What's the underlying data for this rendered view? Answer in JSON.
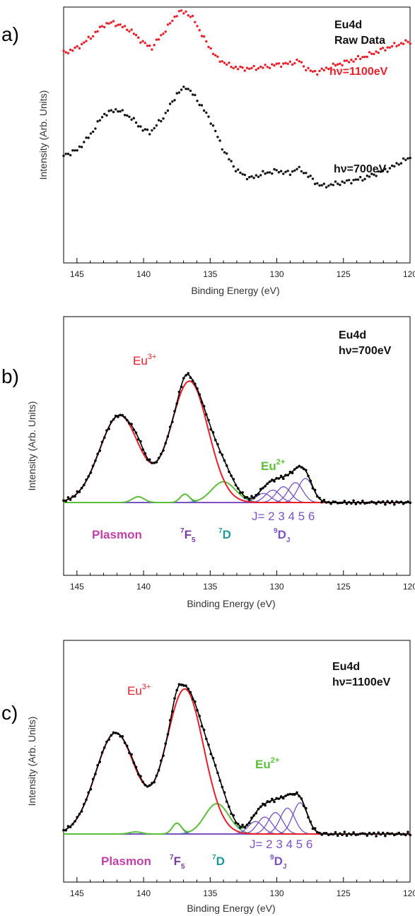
{
  "figure": {
    "colors": {
      "raw_high": "#e8202a",
      "raw_low": "#111111",
      "eu3": "#e8202a",
      "eu2": "#5cbf3a",
      "plasmon": "#c23fa6",
      "f5": "#7a3aa0",
      "d7": "#1e9a9a",
      "dj": "#7a52c4",
      "envelope": "#000000",
      "baseline": "#c23fa6"
    }
  },
  "panels": [
    {
      "id": "a",
      "letter": "a)",
      "label_line1": "Eu4d",
      "label_line2": "Raw Data",
      "series_labels": [
        "hν=1100eV",
        "hν=700eV"
      ]
    },
    {
      "id": "b",
      "letter": "b)",
      "label_line1": "Eu4d",
      "label_line2": "hν=700eV",
      "eu3_label": "Eu",
      "eu3_sup": "3+",
      "eu2_label": "Eu",
      "eu2_sup": "2+",
      "j_label": "J= 2 3 4 5 6",
      "plasmon_label": "Plasmon",
      "f5_label_main": "F",
      "f5_label_sup": "7",
      "f5_label_sub": "5",
      "d7_label_main": "D",
      "d7_label_sup": "7",
      "dj_label_main": "D",
      "dj_label_sup": "9",
      "dj_label_sub": "J"
    },
    {
      "id": "c",
      "letter": "c)",
      "label_line1": "Eu4d",
      "label_line2": "hν=1100eV",
      "eu3_label": "Eu",
      "eu3_sup": "3+",
      "eu2_label": "Eu",
      "eu2_sup": "2+",
      "j_label": "J= 2 3 4 5 6",
      "plasmon_label": "Plasmon",
      "f5_label_main": "F",
      "f5_label_sup": "7",
      "f5_label_sub": "5",
      "d7_label_main": "D",
      "d7_label_sup": "7",
      "dj_label_main": "D",
      "dj_label_sup": "9",
      "dj_label_sub": "J"
    }
  ],
  "chart_data": [
    {
      "type": "scatter",
      "title": "",
      "xlabel": "Binding Energy (eV)",
      "ylabel": "Intensity (Arb. Units)",
      "xlim": [
        146,
        120
      ],
      "x_reversed": true,
      "xticks": [
        145,
        140,
        135,
        130,
        125,
        120
      ],
      "xtick_labels": [
        "145",
        "140",
        "135",
        "130",
        "125",
        "120"
      ],
      "ylim": [
        0,
        1
      ],
      "series": [
        {
          "name": "hν=1100eV",
          "x": [
            146,
            145,
            144,
            143,
            142.3,
            141,
            140,
            139.4,
            138.5,
            137.4,
            136.8,
            136.2,
            135.5,
            134.5,
            133.5,
            132.8,
            132,
            131,
            130,
            129,
            128.3,
            128,
            127.5,
            127,
            126.5,
            125.5,
            124.5,
            123.5,
            122.5,
            121.5,
            120.5,
            120
          ],
          "y": [
            0.82,
            0.84,
            0.88,
            0.93,
            0.94,
            0.91,
            0.86,
            0.84,
            0.9,
            0.98,
            0.98,
            0.95,
            0.88,
            0.8,
            0.77,
            0.76,
            0.76,
            0.765,
            0.775,
            0.78,
            0.79,
            0.77,
            0.75,
            0.745,
            0.755,
            0.775,
            0.79,
            0.805,
            0.825,
            0.845,
            0.86,
            0.865
          ]
        },
        {
          "name": "hν=700eV",
          "x": [
            146,
            145,
            144,
            143,
            142,
            141,
            140,
            139.5,
            138.5,
            137.5,
            136.8,
            136,
            135,
            134,
            133,
            132,
            131,
            130,
            129,
            128.5,
            127.8,
            127,
            126.5,
            125.5,
            124.5,
            123.5,
            122.5,
            121.5,
            120.5,
            120
          ],
          "y": [
            0.42,
            0.44,
            0.5,
            0.58,
            0.6,
            0.57,
            0.52,
            0.51,
            0.57,
            0.66,
            0.69,
            0.64,
            0.56,
            0.44,
            0.36,
            0.33,
            0.35,
            0.36,
            0.35,
            0.37,
            0.35,
            0.31,
            0.3,
            0.31,
            0.32,
            0.33,
            0.35,
            0.37,
            0.4,
            0.41
          ]
        }
      ]
    },
    {
      "type": "line",
      "title": "",
      "xlabel": "Binding Energy (eV)",
      "ylabel": "Intensity (Arb. Units)",
      "xlim": [
        146,
        120
      ],
      "x_reversed": true,
      "xticks": [
        145,
        140,
        135,
        130,
        125,
        120
      ],
      "xtick_labels": [
        "145",
        "140",
        "135",
        "130",
        "125",
        "120"
      ],
      "ylim": [
        0,
        1
      ],
      "series": [
        {
          "name": "Eu3+",
          "components": [
            {
              "center": 141.8,
              "height": 0.525,
              "width": 1.5
            },
            {
              "center": 136.55,
              "height": 0.73,
              "width": 1.4
            }
          ],
          "tail_height": 0.02
        },
        {
          "name": "Plasmon",
          "components": [
            {
              "center": 140.4,
              "height": 0.035,
              "width": 0.45
            }
          ]
        },
        {
          "name": "7F5",
          "components": [
            {
              "center": 136.9,
              "height": 0.05,
              "width": 0.35
            }
          ]
        },
        {
          "name": "7D",
          "components": [
            {
              "center": 134.0,
              "height": 0.125,
              "width": 0.9
            }
          ]
        },
        {
          "name": "9DJ",
          "components": [
            {
              "label": "J=2",
              "center": 131.0,
              "height": 0.055,
              "width": 0.55
            },
            {
              "label": "J=3",
              "center": 130.3,
              "height": 0.075,
              "width": 0.55
            },
            {
              "label": "J=4",
              "center": 129.5,
              "height": 0.095,
              "width": 0.55
            },
            {
              "label": "J=5",
              "center": 128.6,
              "height": 0.12,
              "width": 0.55
            },
            {
              "label": "J=6",
              "center": 127.85,
              "height": 0.145,
              "width": 0.55
            }
          ]
        },
        {
          "name": "Eu2+",
          "note_sum_of": [
            "Plasmon",
            "7F5",
            "7D",
            "9DJ"
          ]
        },
        {
          "name": "data",
          "noise": 0.012
        }
      ]
    },
    {
      "type": "line",
      "title": "",
      "xlabel": "Binding Energy (eV)",
      "ylabel": "Intensity (Arb. Units)",
      "xlim": [
        146,
        120
      ],
      "x_reversed": true,
      "xticks": [
        145,
        140,
        135,
        130,
        125,
        120
      ],
      "xtick_labels": [
        "145",
        "140",
        "135",
        "130",
        "125",
        "120"
      ],
      "ylim": [
        0,
        1
      ],
      "series": [
        {
          "name": "Eu3+",
          "components": [
            {
              "center": 142.1,
              "height": 0.565,
              "width": 1.5
            },
            {
              "center": 136.9,
              "height": 0.81,
              "width": 1.4
            }
          ],
          "tail_height": 0.02
        },
        {
          "name": "Plasmon",
          "components": [
            {
              "center": 140.6,
              "height": 0.012,
              "width": 0.45
            }
          ]
        },
        {
          "name": "7F5",
          "components": [
            {
              "center": 137.5,
              "height": 0.06,
              "width": 0.35
            }
          ]
        },
        {
          "name": "7D",
          "components": [
            {
              "center": 134.5,
              "height": 0.17,
              "width": 0.9
            }
          ]
        },
        {
          "name": "9DJ",
          "components": [
            {
              "label": "J=2",
              "center": 131.6,
              "height": 0.07,
              "width": 0.55
            },
            {
              "label": "J=3",
              "center": 130.9,
              "height": 0.095,
              "width": 0.55
            },
            {
              "label": "J=4",
              "center": 130.1,
              "height": 0.12,
              "width": 0.55
            },
            {
              "label": "J=5",
              "center": 129.2,
              "height": 0.145,
              "width": 0.55
            },
            {
              "label": "J=6",
              "center": 128.25,
              "height": 0.175,
              "width": 0.55
            }
          ]
        },
        {
          "name": "Eu2+",
          "note_sum_of": [
            "Plasmon",
            "7F5",
            "7D",
            "9DJ"
          ]
        },
        {
          "name": "data",
          "noise": 0.012
        }
      ]
    }
  ]
}
